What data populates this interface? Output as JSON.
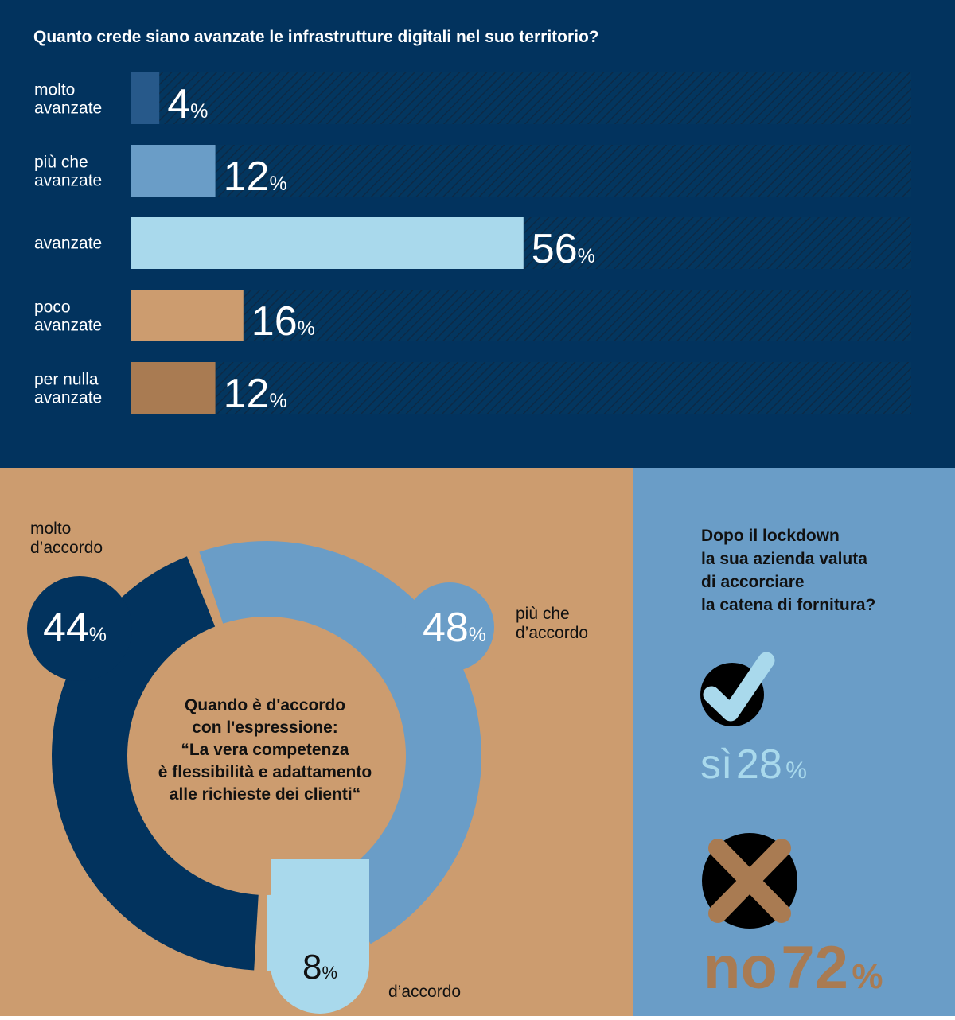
{
  "colors": {
    "navy": "#02335E",
    "steel_blue": "#6A9DC7",
    "mid_blue": "#27598A",
    "light_blue": "#A9D9EC",
    "sand": "#CC9C6F",
    "brown": "#A97B52",
    "track_hatch": "#0C2A47"
  },
  "chart_data": [
    {
      "type": "bar",
      "orientation": "horizontal",
      "title": "Quanto crede siano avanzate le infrastrutture digitali nel suo territorio?",
      "categories": [
        [
          "molto",
          "avanzate"
        ],
        [
          "più che",
          "avanzate"
        ],
        [
          "avanzate"
        ],
        [
          "poco",
          "avanzate"
        ],
        [
          "per nulla",
          "avanzate"
        ]
      ],
      "values": [
        4,
        12,
        56,
        16,
        12
      ],
      "value_labels": [
        "4",
        "12",
        "56",
        "16",
        "12"
      ],
      "unit": "%",
      "bar_colors": [
        "#27598A",
        "#6A9DC7",
        "#A9D9EC",
        "#CC9C6F",
        "#A97B52"
      ],
      "xlim": [
        0,
        100
      ]
    },
    {
      "type": "pie",
      "style": "donut",
      "title_lines": [
        "Quando è d'accordo",
        "con l'espressione:",
        "“La vera competenza",
        "è flessibilità e adattamento",
        "alle richieste dei clienti“"
      ],
      "slices": [
        {
          "label": [
            "più che",
            "d’accordo"
          ],
          "value": 48,
          "value_label": "48",
          "color": "#6A9DC7"
        },
        {
          "label": [
            "d’accordo"
          ],
          "value": 8,
          "value_label": "8",
          "color": "#A9D9EC"
        },
        {
          "label": [
            "molto",
            "d’accordo"
          ],
          "value": 44,
          "value_label": "44",
          "color": "#02335E"
        }
      ],
      "unit": "%"
    }
  ],
  "lockdown_panel": {
    "question_lines": [
      "Dopo il lockdown",
      "la sua azienda valuta",
      "di accorciare",
      "la catena di fornitura?"
    ],
    "yes_icon": "check-circle-icon",
    "yes_label": "sì",
    "yes_value": "28",
    "no_icon": "x-circle-icon",
    "no_label": "no",
    "no_value": "72",
    "unit": "%"
  }
}
